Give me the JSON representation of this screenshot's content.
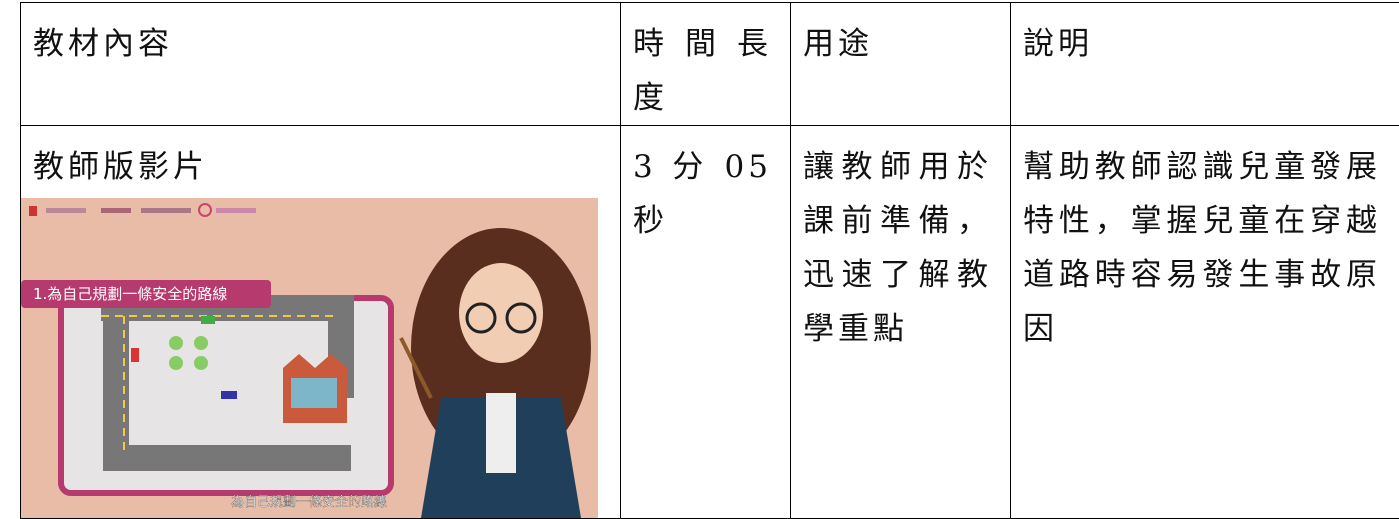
{
  "table": {
    "header": [
      "教材內容",
      "時間長度",
      "用途",
      "說明"
    ],
    "rows": [
      [
        "教師版影片",
        "3 分 05 秒",
        "讓教師用於課前準備，迅速了解教學重點",
        "幫助教師認識兒童發展特性，掌握兒童在穿越道路時容易發生事故原因"
      ]
    ]
  },
  "image": {
    "label": "1.為自己規劃一條安全的路線",
    "subtitle": "為自己規劃一條安全的路線"
  }
}
